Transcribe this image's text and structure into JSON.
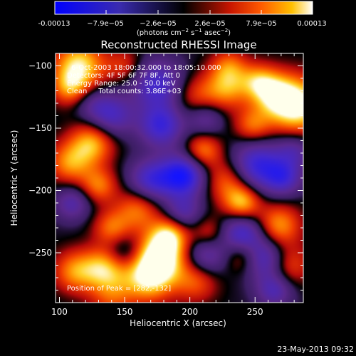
{
  "colorbar": {
    "tick_labels": [
      "-0.00013",
      "−7.9e−05",
      "−2.6e−05",
      "2.6e−05",
      "7.9e−05",
      "0.00013"
    ],
    "unit_label_parts": {
      "pre": "(photons cm",
      "sup1": "−2",
      "mid1": " s",
      "sup2": "−1",
      "mid2": " asec",
      "sup3": "−2",
      "post": ")"
    },
    "range": [
      -0.00013,
      0.00013
    ]
  },
  "chart_data": {
    "type": "heatmap",
    "title": "Reconstructed RHESSI Image",
    "xlabel": "Heliocentric X (arcsec)",
    "ylabel": "Heliocentric Y (arcsec)",
    "xlim": [
      97,
      287
    ],
    "ylim": [
      -290,
      -90
    ],
    "x_ticks": [
      100,
      150,
      200,
      250
    ],
    "y_ticks": [
      -100,
      -150,
      -200,
      -250
    ],
    "colormap": "blue-purple-red-yellow-white",
    "annotations": [
      "6-Oct-2003 18:00:32.000 to 18:05:10.000",
      "Detectors: 4F 5F 6F 7F 8F, Att 0",
      "Energy Range: 25.0 - 50.0 keV",
      "Clean     Total counts: 3.86E+03"
    ],
    "peak_text": "Position of Peak = [282,-132]",
    "peak": [
      282,
      -132
    ],
    "blobs": [
      {
        "x": 282,
        "y": -132,
        "v": 1.0,
        "s": 16
      },
      {
        "x": 264,
        "y": -122,
        "v": 0.6,
        "s": 12
      },
      {
        "x": 252,
        "y": -112,
        "v": 0.5,
        "s": 10
      },
      {
        "x": 248,
        "y": -148,
        "v": 0.5,
        "s": 10
      },
      {
        "x": 228,
        "y": -118,
        "v": 0.6,
        "s": 12
      },
      {
        "x": 205,
        "y": -125,
        "v": 0.4,
        "s": 12
      },
      {
        "x": 115,
        "y": -100,
        "v": 0.85,
        "s": 14
      },
      {
        "x": 108,
        "y": -118,
        "v": 0.5,
        "s": 10
      },
      {
        "x": 125,
        "y": -162,
        "v": 0.7,
        "s": 12
      },
      {
        "x": 108,
        "y": -178,
        "v": 0.6,
        "s": 12
      },
      {
        "x": 130,
        "y": -196,
        "v": 0.55,
        "s": 10
      },
      {
        "x": 160,
        "y": -215,
        "v": 0.55,
        "s": 12
      },
      {
        "x": 140,
        "y": -230,
        "v": 0.5,
        "s": 10
      },
      {
        "x": 178,
        "y": -252,
        "v": 0.95,
        "s": 14
      },
      {
        "x": 168,
        "y": -270,
        "v": 0.8,
        "s": 14
      },
      {
        "x": 185,
        "y": -235,
        "v": 0.6,
        "s": 10
      },
      {
        "x": 135,
        "y": -262,
        "v": 0.7,
        "s": 12
      },
      {
        "x": 112,
        "y": -265,
        "v": 0.6,
        "s": 12
      },
      {
        "x": 210,
        "y": -168,
        "v": 0.6,
        "s": 10
      },
      {
        "x": 228,
        "y": -192,
        "v": 0.5,
        "s": 12
      },
      {
        "x": 240,
        "y": -210,
        "v": 0.75,
        "s": 10
      },
      {
        "x": 268,
        "y": -228,
        "v": 0.65,
        "s": 12
      },
      {
        "x": 275,
        "y": -260,
        "v": 0.5,
        "s": 12
      },
      {
        "x": 240,
        "y": -252,
        "v": 0.5,
        "s": 10
      },
      {
        "x": 205,
        "y": -272,
        "v": 0.5,
        "s": 12
      },
      {
        "x": 215,
        "y": -235,
        "v": 0.45,
        "s": 10
      },
      {
        "x": 150,
        "y": -100,
        "v": 0.35,
        "s": 10
      },
      {
        "x": 175,
        "y": -115,
        "v": -0.7,
        "s": 14
      },
      {
        "x": 140,
        "y": -140,
        "v": -0.6,
        "s": 12
      },
      {
        "x": 178,
        "y": -148,
        "v": -0.75,
        "s": 12
      },
      {
        "x": 195,
        "y": -188,
        "v": -1.0,
        "s": 12
      },
      {
        "x": 170,
        "y": -192,
        "v": -0.7,
        "s": 12
      },
      {
        "x": 252,
        "y": -180,
        "v": -0.8,
        "s": 14
      },
      {
        "x": 272,
        "y": -190,
        "v": -0.6,
        "s": 10
      },
      {
        "x": 240,
        "y": -235,
        "v": -0.75,
        "s": 12
      },
      {
        "x": 258,
        "y": -255,
        "v": -0.7,
        "s": 12
      },
      {
        "x": 195,
        "y": -218,
        "v": -0.5,
        "s": 10
      },
      {
        "x": 150,
        "y": -250,
        "v": -0.4,
        "s": 10
      },
      {
        "x": 212,
        "y": -252,
        "v": -0.6,
        "s": 12
      },
      {
        "x": 280,
        "y": -168,
        "v": -0.45,
        "s": 10
      },
      {
        "x": 110,
        "y": -210,
        "v": -0.5,
        "s": 10
      },
      {
        "x": 212,
        "y": -142,
        "v": -0.45,
        "s": 10
      },
      {
        "x": 265,
        "y": -280,
        "v": -0.55,
        "s": 10
      },
      {
        "x": 125,
        "y": -130,
        "v": -0.3,
        "s": 10
      },
      {
        "x": 140,
        "y": -285,
        "v": 0.4,
        "s": 12
      },
      {
        "x": 230,
        "y": -100,
        "v": 0.45,
        "s": 10
      }
    ]
  },
  "footer": {
    "timestamp": "23-May-2013 09:32"
  }
}
